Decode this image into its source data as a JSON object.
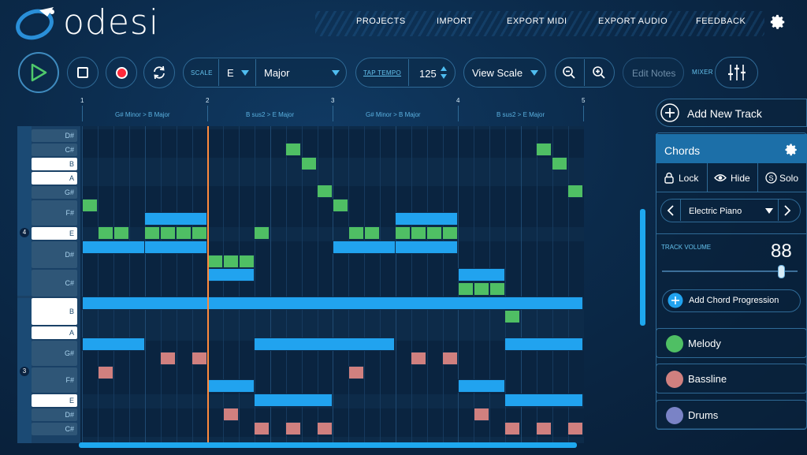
{
  "app": {
    "name": "odesi"
  },
  "nav": {
    "items": [
      "PROJECTS",
      "IMPORT",
      "EXPORT MIDI",
      "EXPORT AUDIO",
      "FEEDBACK"
    ]
  },
  "toolbar": {
    "scale_label": "SCALE",
    "scale_key": "E",
    "scale_mode": "Major",
    "tap_tempo_label": "TAP TEMPO",
    "tempo": "125",
    "view_scale": "View Scale",
    "edit_notes": "Edit Notes",
    "mixer_label": "MIXER"
  },
  "timeline": {
    "bars": [
      "1",
      "2",
      "3",
      "4",
      "5"
    ],
    "chords": [
      "G# Minor > B Major",
      "B sus2 > E Major",
      "G# Minor > B Major",
      "B sus2 > E Major"
    ]
  },
  "piano": {
    "keys": [
      {
        "label": "D#",
        "type": "b"
      },
      {
        "label": "C#",
        "type": "b"
      },
      {
        "label": "B",
        "type": "w"
      },
      {
        "label": "A",
        "type": "w"
      },
      {
        "label": "G#",
        "type": "b"
      },
      {
        "label": "F#",
        "type": "b"
      },
      {
        "label": "E",
        "type": "w"
      },
      {
        "label": "D#",
        "type": "b"
      },
      {
        "label": "C#",
        "type": "b"
      },
      {
        "label": "B",
        "type": "w"
      },
      {
        "label": "A",
        "type": "w"
      },
      {
        "label": "G#",
        "type": "b"
      },
      {
        "label": "F#",
        "type": "b"
      },
      {
        "label": "E",
        "type": "w"
      },
      {
        "label": "D#",
        "type": "b"
      },
      {
        "label": "C#",
        "type": "b"
      }
    ],
    "octaves": [
      "4",
      "3"
    ]
  },
  "panel": {
    "add_track": "Add New Track",
    "track_title": "Chords",
    "lock": "Lock",
    "hide": "Hide",
    "solo": "Solo",
    "instrument": "Electric Piano",
    "volume_label": "TRACK VOLUME",
    "volume": "88",
    "volume_level": 0.88,
    "add_progression": "Add Chord Progression",
    "tracks": [
      {
        "name": "Melody",
        "color": "#4fbf64"
      },
      {
        "name": "Bassline",
        "color": "#d0807f"
      },
      {
        "name": "Drums",
        "color": "#7a83c6"
      }
    ]
  },
  "colors": {
    "accent": "#21a3ef",
    "chord_note": "#21a3ef",
    "melody_note": "#4fbf64",
    "bass_note": "#d0807f",
    "playhead": "#ff8a3d"
  }
}
